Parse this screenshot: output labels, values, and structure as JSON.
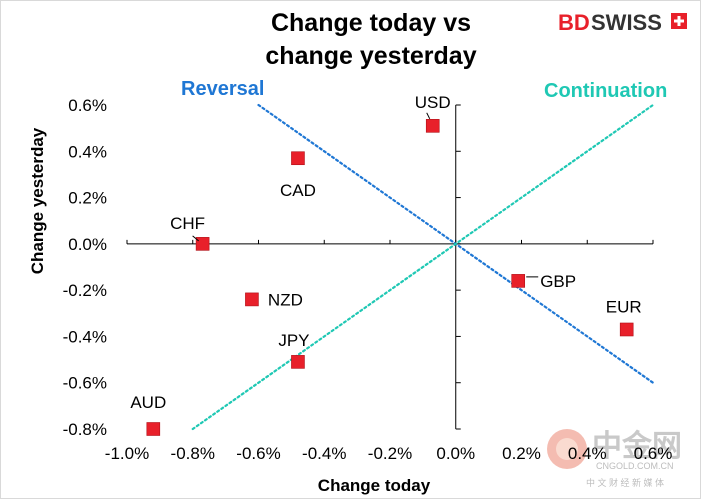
{
  "chart_data": {
    "type": "scatter",
    "title_lines": [
      "Change today vs",
      "change yesterday"
    ],
    "xlabel": "Change today",
    "ylabel": "Change yesterday",
    "xlim": [
      -1.0,
      0.6
    ],
    "ylim": [
      -0.8,
      0.6
    ],
    "x_ticks": [
      "-1.0%",
      "-0.8%",
      "-0.6%",
      "-0.4%",
      "-0.2%",
      "0.0%",
      "0.2%",
      "0.4%",
      "0.6%"
    ],
    "y_ticks": [
      "0.6%",
      "0.4%",
      "0.2%",
      "0.0%",
      "-0.2%",
      "-0.4%",
      "-0.6%",
      "-0.8%"
    ],
    "points": [
      {
        "label": "USD",
        "x": -0.07,
        "y": 0.51
      },
      {
        "label": "CAD",
        "x": -0.48,
        "y": 0.37
      },
      {
        "label": "CHF",
        "x": -0.77,
        "y": 0.0
      },
      {
        "label": "NZD",
        "x": -0.62,
        "y": -0.24
      },
      {
        "label": "JPY",
        "x": -0.48,
        "y": -0.51
      },
      {
        "label": "AUD",
        "x": -0.92,
        "y": -0.8
      },
      {
        "label": "GBP",
        "x": 0.19,
        "y": -0.16
      },
      {
        "label": "EUR",
        "x": 0.52,
        "y": -0.37
      }
    ],
    "reference_lines": [
      {
        "label": "Reversal",
        "color": "#1f77d4",
        "from": [
          -0.6,
          0.6
        ],
        "to": [
          0.6,
          -0.6
        ]
      },
      {
        "label": "Continuation",
        "color": "#1fc8b4",
        "from": [
          -0.8,
          -0.8
        ],
        "to": [
          0.6,
          0.6
        ]
      }
    ],
    "marker_color": "#e8202a",
    "grid": false
  },
  "branding": {
    "logo_bd": "BD",
    "logo_swiss": "SWISS",
    "logo_color": "#e8202a",
    "watermark_cn": "中金网",
    "watermark_url": "CNGOLD.COM.CN",
    "watermark_sub": "中 文 财 经 新 媒 体"
  }
}
